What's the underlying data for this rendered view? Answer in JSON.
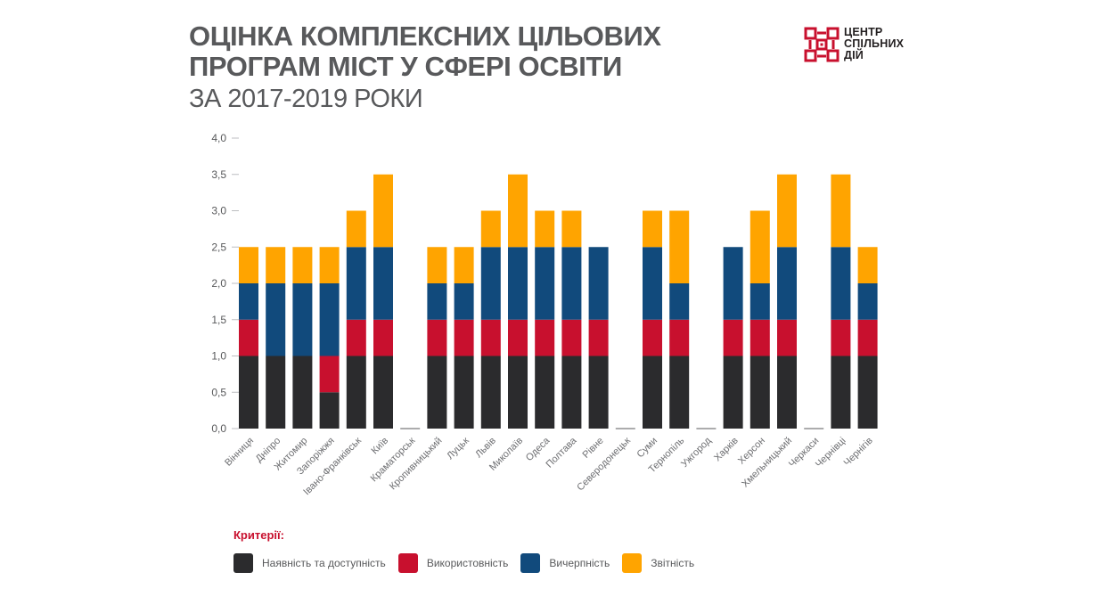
{
  "title": {
    "line1": "Оцінка комплексних цільових",
    "line2": "програм міст у сфері освіти",
    "subtitle": "ЗА 2017-2019 РОКИ"
  },
  "logo": {
    "line1": "ЦЕНТР",
    "line2": "СПІЛЬНИХ",
    "line3": "ДІЙ",
    "color": "#c8102e"
  },
  "legend": {
    "title": "Критерії:",
    "items": [
      {
        "label": "Наявність та доступність",
        "color": "#2b2b2d"
      },
      {
        "label": "Використовність",
        "color": "#c8102e"
      },
      {
        "label": "Вичерпність",
        "color": "#114a7c"
      },
      {
        "label": "Звітність",
        "color": "#ffa400"
      }
    ]
  },
  "chart_data": {
    "type": "bar",
    "stacked": true,
    "title": "Оцінка комплексних цільових програм міст у сфері освіти",
    "subtitle": "ЗА 2017-2019 РОКИ",
    "xlabel": "",
    "ylabel": "",
    "ylim": [
      0,
      4
    ],
    "yticks": [
      "0,0",
      "0,5",
      "1,0",
      "1,5",
      "2,0",
      "2,5",
      "3,0",
      "3,5",
      "4,0"
    ],
    "categories": [
      "Вінниця",
      "Дніпро",
      "Житомир",
      "Запоріжжя",
      "Івано-Франківськ",
      "Київ",
      "Краматорськ",
      "Кропивницький",
      "Луцьк",
      "Львів",
      "Миколаїв",
      "Одеса",
      "Полтава",
      "Рівне",
      "Северодонецьк",
      "Суми",
      "Тернопіль",
      "Ужгород",
      "Харків",
      "Херсон",
      "Хмельницький",
      "Черкаси",
      "Чернівці",
      "Чернігів"
    ],
    "series": [
      {
        "name": "Наявність та доступність",
        "color": "#2b2b2d",
        "values": [
          1,
          1,
          1,
          0.5,
          1,
          1,
          0,
          1,
          1,
          1,
          1,
          1,
          1,
          1,
          0,
          1,
          1,
          0,
          1,
          1,
          1,
          0,
          1,
          1
        ]
      },
      {
        "name": "Використовність",
        "color": "#c8102e",
        "values": [
          0.5,
          0,
          0,
          0.5,
          0.5,
          0.5,
          0,
          0.5,
          0.5,
          0.5,
          0.5,
          0.5,
          0.5,
          0.5,
          0,
          0.5,
          0.5,
          0,
          0.5,
          0.5,
          0.5,
          0,
          0.5,
          0.5
        ]
      },
      {
        "name": "Вичерпність",
        "color": "#114a7c",
        "values": [
          0.5,
          1,
          1,
          1,
          1,
          1,
          0,
          0.5,
          0.5,
          1,
          1,
          1,
          1,
          1,
          0,
          1,
          0.5,
          0,
          1,
          0.5,
          1,
          0,
          1,
          0.5
        ]
      },
      {
        "name": "Звітність",
        "color": "#ffa400",
        "values": [
          0.5,
          0.5,
          0.5,
          0.5,
          0.5,
          1,
          0,
          0.5,
          0.5,
          0.5,
          1,
          0.5,
          0.5,
          0,
          0,
          0.5,
          1,
          0,
          0,
          1,
          1,
          0,
          1,
          0.5
        ]
      }
    ],
    "grid": false,
    "legend": "bottom-left"
  }
}
